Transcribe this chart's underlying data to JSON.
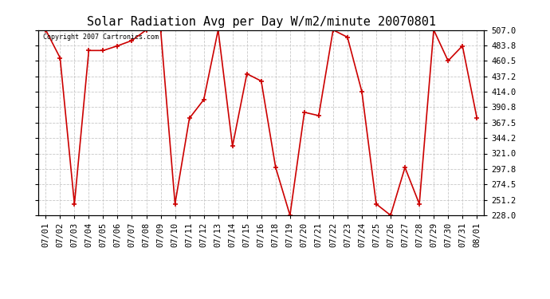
{
  "title": "Solar Radiation Avg per Day W/m2/minute 20070801",
  "copyright_text": "Copyright 2007 Cartronics.com",
  "x_labels": [
    "07/01",
    "07/02",
    "07/03",
    "07/04",
    "07/05",
    "07/06",
    "07/07",
    "07/08",
    "07/09",
    "07/10",
    "07/11",
    "07/12",
    "07/13",
    "07/14",
    "07/15",
    "07/16",
    "07/18",
    "07/19",
    "07/20",
    "07/21",
    "07/22",
    "07/23",
    "07/24",
    "07/25",
    "07/26",
    "07/27",
    "07/28",
    "07/29",
    "07/30",
    "07/31",
    "08/01"
  ],
  "y_values": [
    507.0,
    465.0,
    245.0,
    476.0,
    476.0,
    483.0,
    491.0,
    507.0,
    507.0,
    245.0,
    374.0,
    402.0,
    507.0,
    332.0,
    441.0,
    430.0,
    300.0,
    228.0,
    383.0,
    378.0,
    507.0,
    496.0,
    414.0,
    245.0,
    228.0,
    300.0,
    245.0,
    507.0,
    460.5,
    483.0,
    375.0
  ],
  "line_color": "#cc0000",
  "marker_color": "#cc0000",
  "background_color": "#ffffff",
  "grid_color": "#c8c8c8",
  "ylim": [
    228.0,
    507.0
  ],
  "yticks": [
    228.0,
    251.2,
    274.5,
    297.8,
    321.0,
    344.2,
    367.5,
    390.8,
    414.0,
    437.2,
    460.5,
    483.8,
    507.0
  ],
  "title_fontsize": 11,
  "tick_fontsize": 7.5
}
